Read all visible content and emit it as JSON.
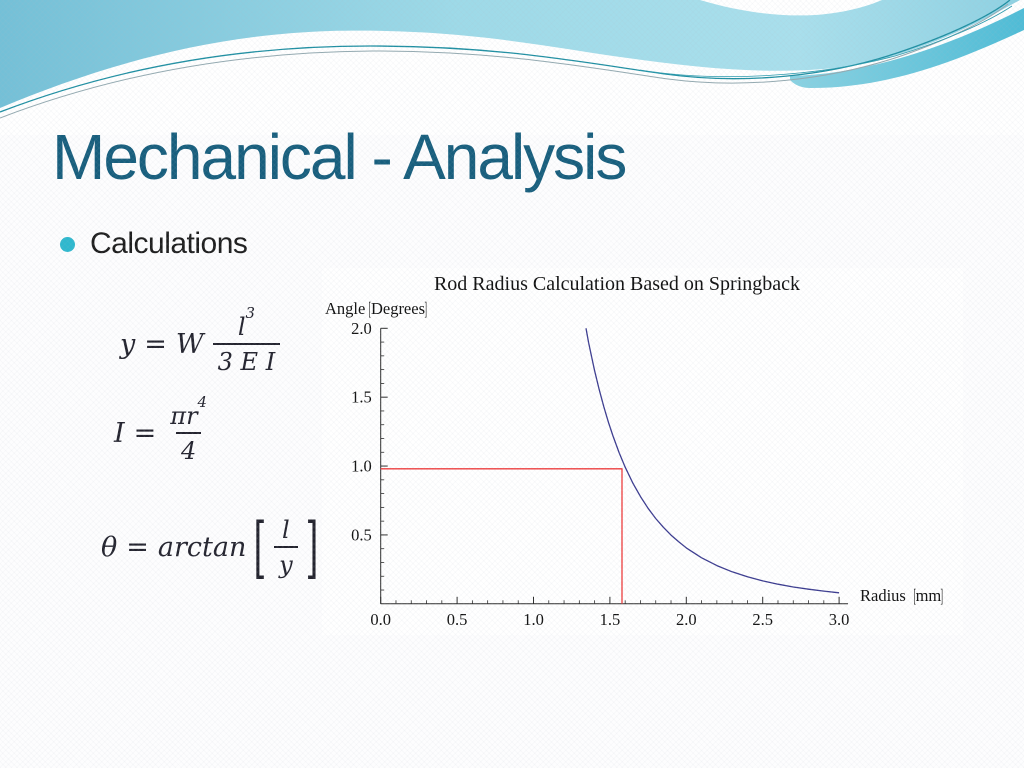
{
  "slide": {
    "title": "Mechanical - Analysis",
    "bullet_label": "Calculations"
  },
  "formulas": {
    "deflection": {
      "lhs": "y",
      "eq": "=",
      "coef": "W",
      "num_base": "l",
      "num_exp": "3",
      "den": "3 E I"
    },
    "inertia": {
      "lhs": "I",
      "eq": "=",
      "num_base": "πr",
      "num_exp": "4",
      "den": "4"
    },
    "springback_angle": {
      "lhs": "θ",
      "eq": "=",
      "fn": "arctan",
      "bracket_open": "[",
      "bracket_close": "]",
      "num": "l",
      "den": "y"
    }
  },
  "chart_data": {
    "type": "line",
    "title": "Rod Radius Calculation Based on Springback",
    "xlabel": "Radius",
    "xlabel_unit": "mm",
    "ylabel": "Angle",
    "ylabel_unit": "Degrees",
    "bracket_open": "[",
    "bracket_close": "]",
    "xlim": [
      0,
      3.05
    ],
    "ylim": [
      0,
      2.0
    ],
    "x_tick_values": [
      0,
      0.5,
      1,
      1.5,
      2,
      2.5,
      3
    ],
    "x_tick_labels": [
      "0.0",
      "0.5",
      "1.0",
      "1.5",
      "2.0",
      "2.5",
      "3.0"
    ],
    "y_tick_values": [
      0.5,
      1,
      1.5,
      2
    ],
    "y_tick_labels": [
      "0.5",
      "1.0",
      "1.5",
      "2.0"
    ],
    "minor_tick_step": 0.1,
    "grid": false,
    "legend": "none",
    "series": [
      {
        "name": "springback_angle_vs_radius",
        "color": "#3b3b8f",
        "points": [
          [
            1.3435,
            2.0
          ],
          [
            1.36,
            1.9
          ],
          [
            1.38,
            1.793
          ],
          [
            1.4,
            1.692
          ],
          [
            1.43,
            1.555
          ],
          [
            1.46,
            1.431
          ],
          [
            1.49,
            1.318
          ],
          [
            1.52,
            1.218
          ],
          [
            1.56,
            1.098
          ],
          [
            1.6,
            0.992
          ],
          [
            1.65,
            0.877
          ],
          [
            1.7,
            0.778
          ],
          [
            1.75,
            0.693
          ],
          [
            1.8,
            0.619
          ],
          [
            1.85,
            0.555
          ],
          [
            1.9,
            0.499
          ],
          [
            1.95,
            0.45
          ],
          [
            2.0,
            0.406
          ],
          [
            2.1,
            0.334
          ],
          [
            2.2,
            0.277
          ],
          [
            2.3,
            0.232
          ],
          [
            2.4,
            0.196
          ],
          [
            2.5,
            0.166
          ],
          [
            2.6,
            0.142
          ],
          [
            2.7,
            0.122
          ],
          [
            2.8,
            0.106
          ],
          [
            2.9,
            0.092
          ],
          [
            3.0,
            0.08
          ]
        ]
      },
      {
        "name": "target_radius_reference",
        "color": "#ee3a3a",
        "points": [
          [
            0,
            0.98
          ],
          [
            1.579,
            0.98
          ],
          [
            1.579,
            0
          ]
        ]
      }
    ]
  },
  "colors": {
    "title_text": "#175e7d",
    "bullet_dot": "#2eb8ce",
    "body_text": "#1d1d1d",
    "formula_ink": "#23232e",
    "curve": "#3b3b8f",
    "reference_line": "#ee3a3a",
    "axis": "#2b2b2b",
    "header_sky": "#8fd0e2",
    "header_band": "#55bed7"
  }
}
